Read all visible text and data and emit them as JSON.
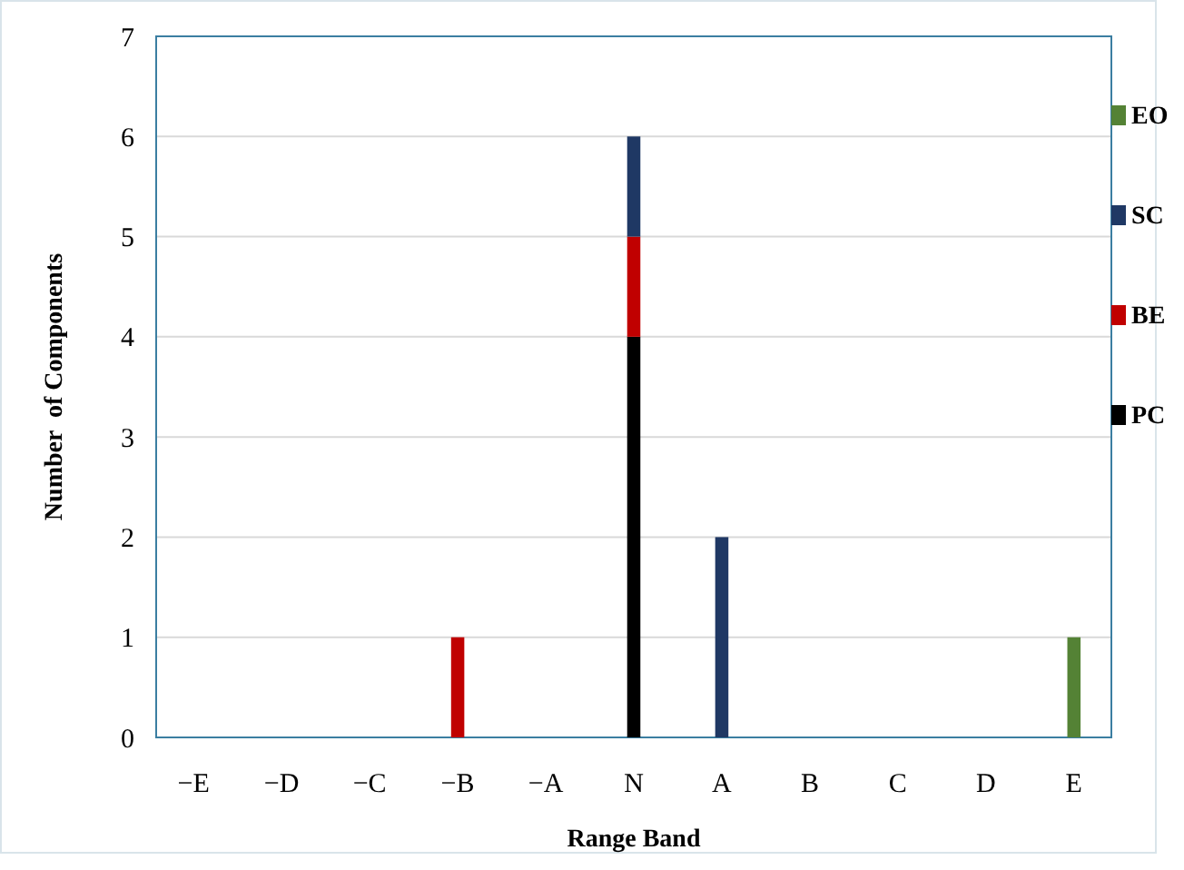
{
  "chart_data": {
    "type": "bar",
    "stacked": true,
    "xlabel": "Range Band",
    "ylabel": "Number  of Components",
    "categories": [
      "−E",
      "−D",
      "−C",
      "−B",
      "−A",
      "N",
      "A",
      "B",
      "C",
      "D",
      "E"
    ],
    "series": [
      {
        "name": "PC",
        "color": "#000000",
        "values": [
          0,
          0,
          0,
          0,
          0,
          4,
          0,
          0,
          0,
          0,
          0
        ]
      },
      {
        "name": "BE",
        "color": "#c00000",
        "values": [
          0,
          0,
          0,
          1,
          0,
          1,
          0,
          0,
          0,
          0,
          0
        ]
      },
      {
        "name": "SC",
        "color": "#1f3864",
        "values": [
          0,
          0,
          0,
          0,
          0,
          1,
          2,
          0,
          0,
          0,
          0
        ]
      },
      {
        "name": "EO",
        "color": "#548235",
        "values": [
          0,
          0,
          0,
          0,
          0,
          0,
          0,
          0,
          0,
          0,
          1
        ]
      }
    ],
    "ylim": [
      0,
      7
    ],
    "yticks": [
      0,
      1,
      2,
      3,
      4,
      5,
      6,
      7
    ],
    "grid": "y",
    "legend": "right"
  }
}
